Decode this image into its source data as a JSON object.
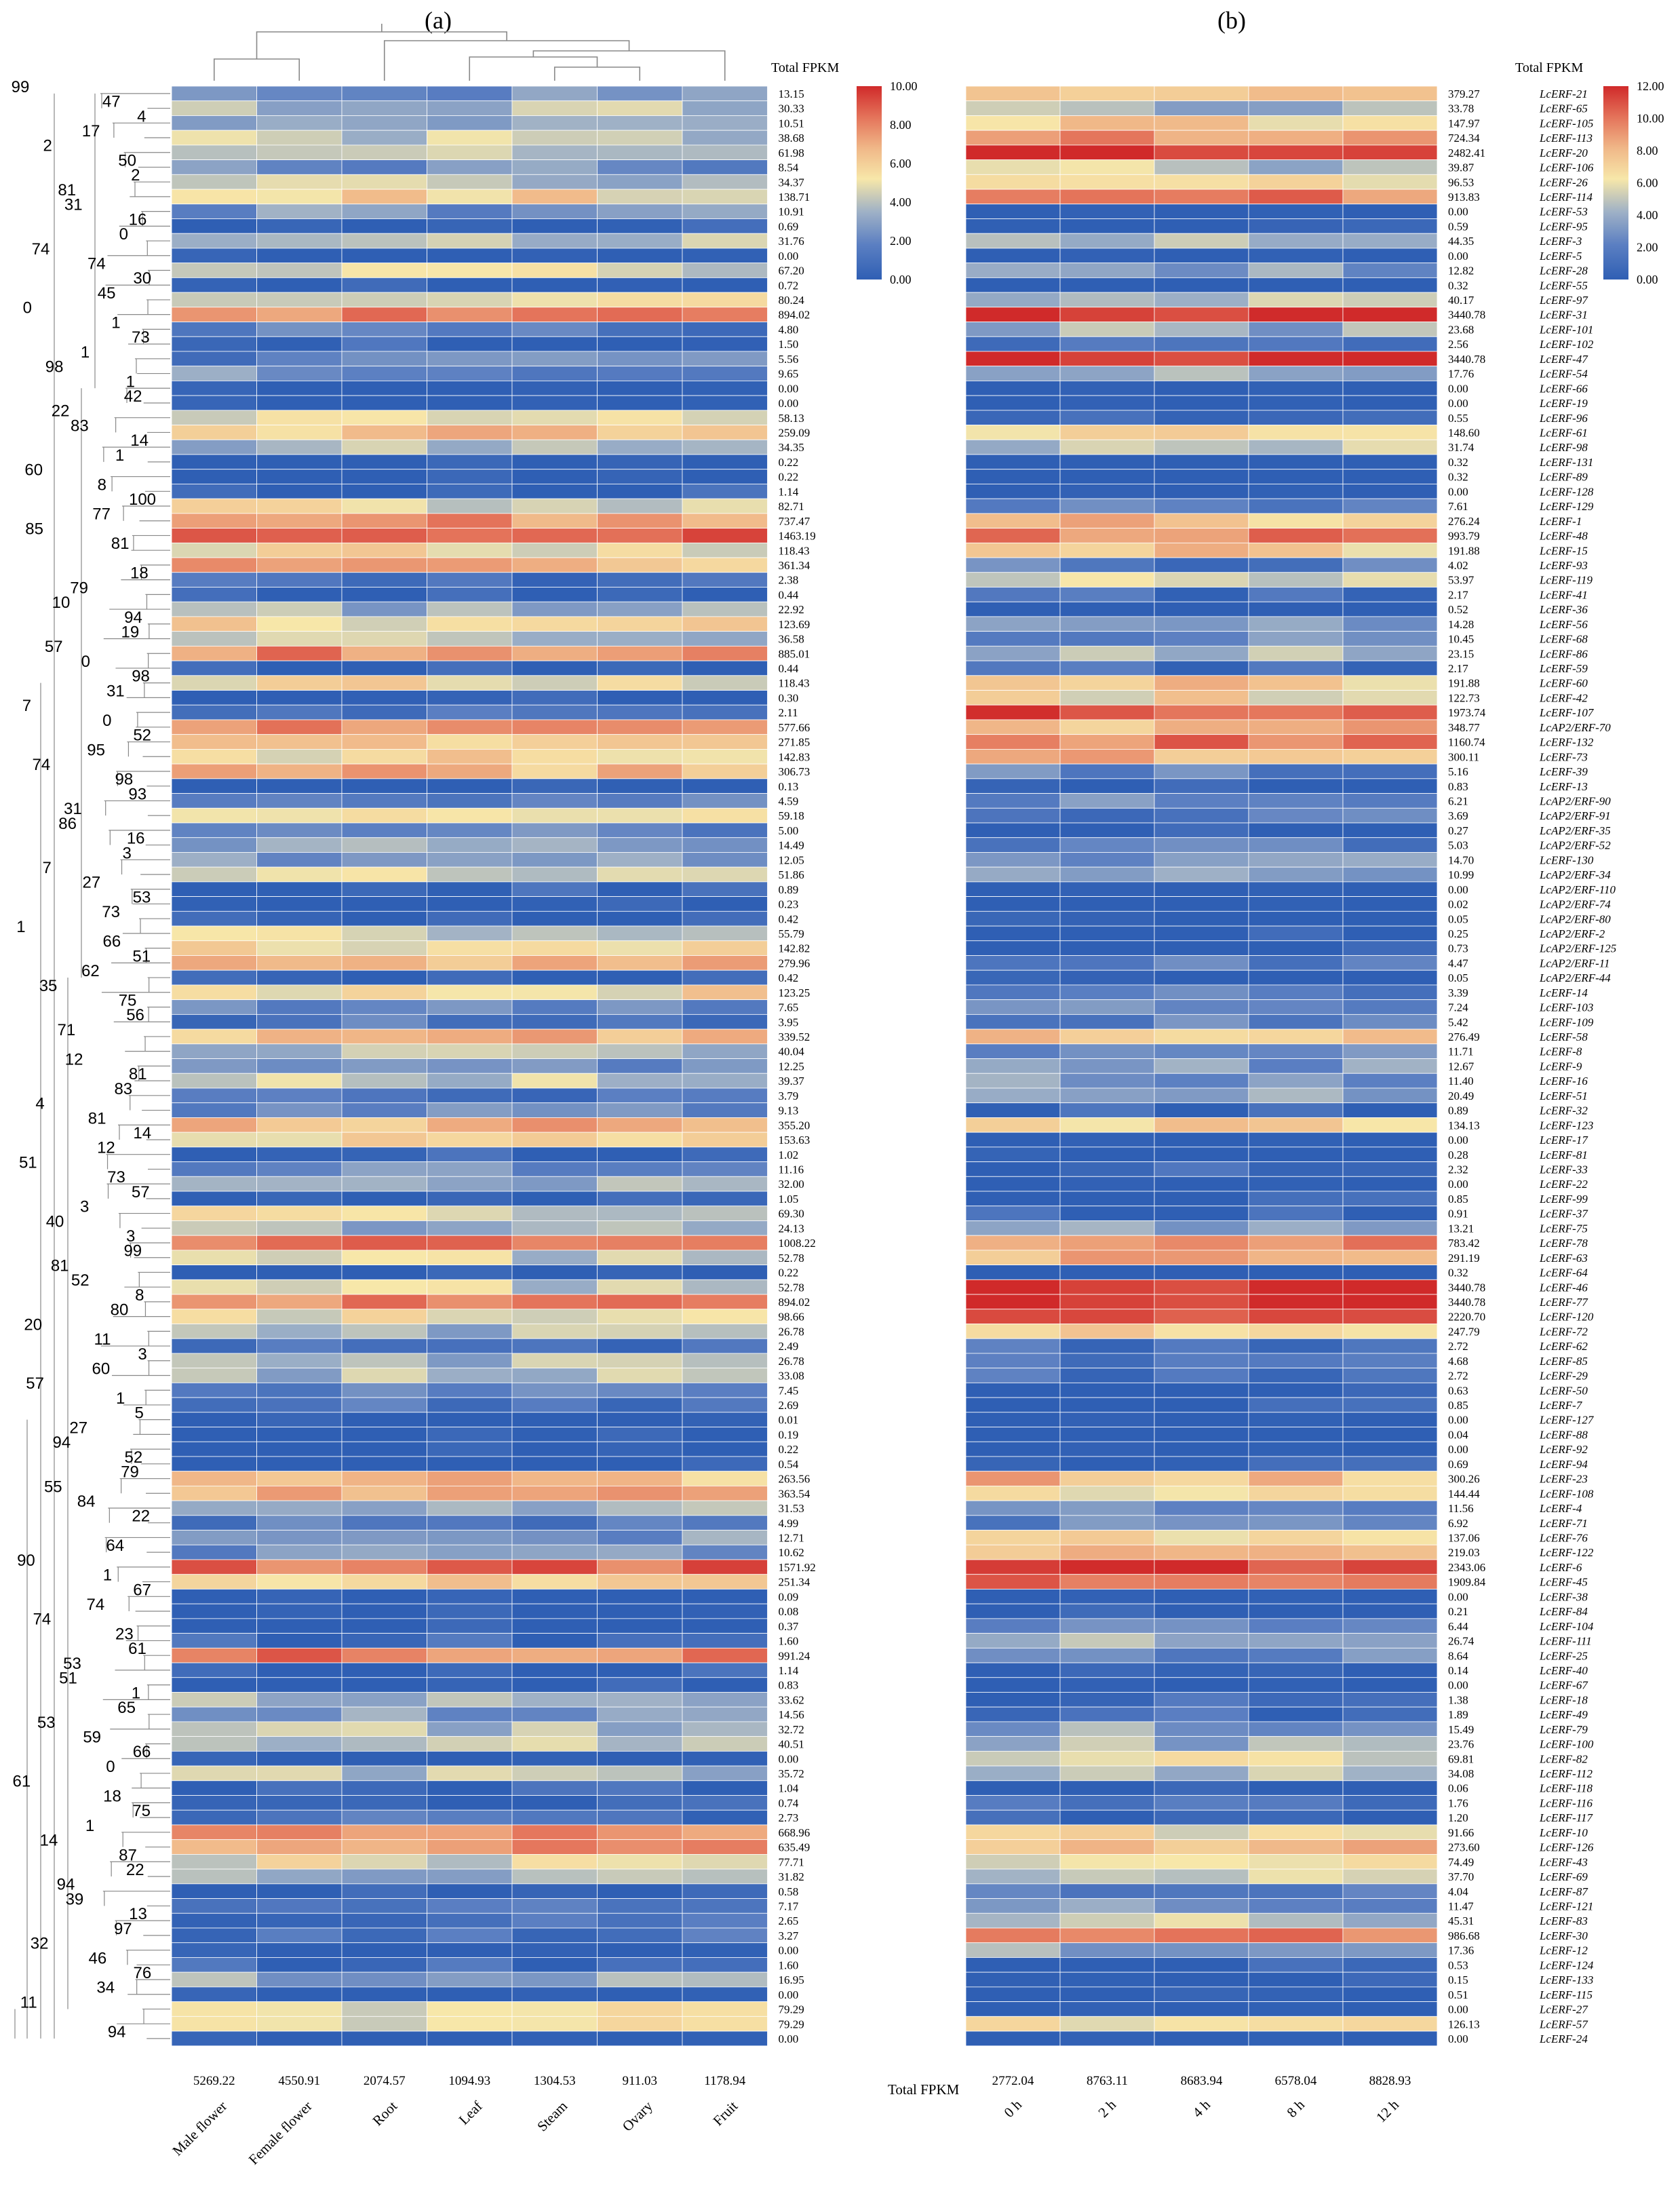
{
  "chart_data": [
    {
      "type": "heatmap",
      "panel_label": "(a)",
      "total_header": "Total FPKM",
      "columns": [
        "Male flower",
        "Female flower",
        "Root",
        "Leaf",
        "Steam",
        "Ovary",
        "Fruit"
      ],
      "column_totals": [
        "5269.22",
        "4550.91",
        "2074.57",
        "1094.93",
        "1304.53",
        "911.03",
        "1178.94"
      ],
      "row_totals": [
        "13.15",
        "30.33",
        "10.51",
        "38.68",
        "61.98",
        "8.54",
        "34.37",
        "138.71",
        "10.91",
        "0.69",
        "31.76",
        "0.00",
        "67.20",
        "0.72",
        "80.24",
        "894.02",
        "4.80",
        "1.50",
        "5.56",
        "9.65",
        "0.00",
        "0.00",
        "58.13",
        "259.09",
        "34.35",
        "0.22",
        "0.22",
        "1.14",
        "82.71",
        "737.47",
        "1463.19",
        "118.43",
        "361.34",
        "2.38",
        "0.44",
        "22.92",
        "123.69",
        "36.58",
        "885.01",
        "0.44",
        "118.43",
        "0.30",
        "2.11",
        "577.66",
        "271.85",
        "142.83",
        "306.73",
        "0.13",
        "4.59",
        "59.18",
        "5.00",
        "14.49",
        "12.05",
        "51.86",
        "0.89",
        "0.23",
        "0.42",
        "55.79",
        "142.82",
        "279.96",
        "0.42",
        "123.25",
        "7.65",
        "3.95",
        "339.52",
        "40.04",
        "12.25",
        "39.37",
        "3.79",
        "9.13",
        "355.20",
        "153.63",
        "1.02",
        "11.16",
        "32.00",
        "1.05",
        "69.30",
        "24.13",
        "1008.22",
        "52.78",
        "0.22",
        "52.78",
        "894.02",
        "98.66",
        "26.78",
        "2.49",
        "26.78",
        "33.08",
        "7.45",
        "2.69",
        "0.01",
        "0.19",
        "0.22",
        "0.54",
        "263.56",
        "363.54",
        "31.53",
        "4.99",
        "12.71",
        "10.62",
        "1571.92",
        "251.34",
        "0.09",
        "0.08",
        "0.37",
        "1.60",
        "991.24",
        "1.14",
        "0.83",
        "33.62",
        "14.56",
        "32.72",
        "40.51",
        "0.00",
        "35.72",
        "1.04",
        "0.74",
        "2.73",
        "668.96",
        "635.49",
        "77.71",
        "31.82",
        "0.58",
        "7.17",
        "2.65",
        "3.27",
        "0.00",
        "1.60",
        "16.95",
        "0.00",
        "79.29",
        "79.29",
        "0.00"
      ],
      "dendrogram_labels": [
        "99",
        "47",
        "4",
        "17",
        "2",
        "50",
        "2",
        "81",
        "31",
        "16",
        "0",
        "74",
        "74",
        "30",
        "45",
        "0",
        "1",
        "73",
        "1",
        "98",
        "1",
        "42",
        "22",
        "83",
        "14",
        "1",
        "60",
        "8",
        "100",
        "77",
        "85",
        "81",
        "18",
        "79",
        "10",
        "94",
        "19",
        "57",
        "0",
        "98",
        "31",
        "7",
        "0",
        "52",
        "95",
        "74",
        "98",
        "93",
        "31",
        "86",
        "16",
        "3",
        "7",
        "27",
        "53",
        "73",
        "1",
        "66",
        "51",
        "62",
        "35",
        "75",
        "56",
        "71",
        "12",
        "81",
        "83",
        "4",
        "81",
        "14",
        "12",
        "51",
        "73",
        "57",
        "3",
        "40",
        "3",
        "99",
        "81",
        "52",
        "8",
        "80",
        "20",
        "11",
        "3",
        "60",
        "57",
        "1",
        "5",
        "27",
        "94",
        "52",
        "79",
        "55",
        "84",
        "22",
        "64",
        "90",
        "1",
        "67",
        "74",
        "74",
        "23",
        "61",
        "53",
        "51",
        "1",
        "65",
        "53",
        "59",
        "66",
        "0",
        "61",
        "18",
        "75",
        "1",
        "14",
        "87",
        "22",
        "94",
        "39",
        "13",
        "97",
        "32",
        "46",
        "76",
        "34",
        "11",
        "94"
      ],
      "legend": {
        "ticks": [
          "10.00",
          "8.00",
          "6.00",
          "4.00",
          "2.00",
          "0.00"
        ],
        "min": 0,
        "max": 10
      },
      "colors": {
        "low": "#2f5fb4",
        "mid": "#f7e7a9",
        "high": "#d02a2a"
      }
    },
    {
      "type": "heatmap",
      "panel_label": "(b)",
      "total_header": "Total FPKM",
      "columns": [
        "0 h",
        "2 h",
        "4 h",
        "8 h",
        "12 h"
      ],
      "total_row_label": "Total FPKM",
      "column_totals": [
        "2772.04",
        "8763.11",
        "8683.94",
        "6578.04",
        "8828.93"
      ],
      "row_totals": [
        "379.27",
        "33.78",
        "147.97",
        "724.34",
        "2482.41",
        "39.87",
        "96.53",
        "913.83",
        "0.00",
        "0.59",
        "44.35",
        "0.00",
        "12.82",
        "0.32",
        "40.17",
        "3440.78",
        "23.68",
        "2.56",
        "3440.78",
        "17.76",
        "0.00",
        "0.00",
        "0.55",
        "148.60",
        "31.74",
        "0.32",
        "0.32",
        "0.00",
        "7.61",
        "276.24",
        "993.79",
        "191.88",
        "4.02",
        "53.97",
        "2.17",
        "0.52",
        "14.28",
        "10.45",
        "23.15",
        "2.17",
        "191.88",
        "122.73",
        "1973.74",
        "348.77",
        "1160.74",
        "300.11",
        "5.16",
        "0.83",
        "6.21",
        "3.69",
        "0.27",
        "5.03",
        "14.70",
        "10.99",
        "0.00",
        "0.02",
        "0.05",
        "0.25",
        "0.73",
        "4.47",
        "0.05",
        "3.39",
        "7.24",
        "5.42",
        "276.49",
        "11.71",
        "12.67",
        "11.40",
        "20.49",
        "0.89",
        "134.13",
        "0.00",
        "0.28",
        "2.32",
        "0.00",
        "0.85",
        "0.91",
        "13.21",
        "783.42",
        "291.19",
        "0.32",
        "3440.78",
        "3440.78",
        "2220.70",
        "247.79",
        "2.72",
        "4.68",
        "2.72",
        "0.63",
        "0.85",
        "0.00",
        "0.04",
        "0.00",
        "0.69",
        "300.26",
        "144.44",
        "11.56",
        "6.92",
        "137.06",
        "219.03",
        "2343.06",
        "1909.84",
        "0.00",
        "0.21",
        "6.44",
        "26.74",
        "8.64",
        "0.14",
        "0.00",
        "1.38",
        "1.89",
        "15.49",
        "23.76",
        "69.81",
        "34.08",
        "0.06",
        "1.76",
        "1.20",
        "91.66",
        "273.60",
        "74.49",
        "37.70",
        "4.04",
        "11.47",
        "45.31",
        "986.68",
        "17.36",
        "0.53",
        "0.15",
        "0.51",
        "0.00",
        "126.13",
        "0.00"
      ],
      "gene_labels": [
        "LcERF-21",
        "LcERF-65",
        "LcERF-105",
        "LcERF-113",
        "LcERF-20",
        "LcERF-106",
        "LcERF-26",
        "LcERF-114",
        "LcERF-53",
        "LcERF-95",
        "LcERF-3",
        "LcERF-5",
        "LcERF-28",
        "LcERF-55",
        "LcERF-97",
        "LcERF-31",
        "LcERF-101",
        "LcERF-102",
        "LcERF-47",
        "LcERF-54",
        "LcERF-66",
        "LcERF-19",
        "LcERF-96",
        "LcERF-61",
        "LcERF-98",
        "LcERF-131",
        "LcERF-89",
        "LcERF-128",
        "LcERF-129",
        "LcERF-1",
        "LcERF-48",
        "LcERF-15",
        "LcERF-93",
        "LcERF-119",
        "LcERF-41",
        "LcERF-36",
        "LcERF-56",
        "LcERF-68",
        "LcERF-86",
        "LcERF-59",
        "LcERF-60",
        "LcERF-42",
        "LcERF-107",
        "LcAP2/ERF-70",
        "LcERF-132",
        "LcERF-73",
        "LcERF-39",
        "LcERF-13",
        "LcAP2/ERF-90",
        "LcAP2/ERF-91",
        "LcAP2/ERF-35",
        "LcAP2/ERF-52",
        "LcERF-130",
        "LcAP2/ERF-34",
        "LcAP2/ERF-110",
        "LcAP2/ERF-74",
        "LcAP2/ERF-80",
        "LcAP2/ERF-2",
        "LcAP2/ERF-125",
        "LcAP2/ERF-11",
        "LcAP2/ERF-44",
        "LcERF-14",
        "LcERF-103",
        "LcERF-109",
        "LcERF-58",
        "LcERF-8",
        "LcERF-9",
        "LcERF-16",
        "LcERF-51",
        "LcERF-32",
        "LcERF-123",
        "LcERF-17",
        "LcERF-81",
        "LcERF-33",
        "LcERF-22",
        "LcERF-99",
        "LcERF-37",
        "LcERF-75",
        "LcERF-78",
        "LcERF-63",
        "LcERF-64",
        "LcERF-46",
        "LcERF-77",
        "LcERF-120",
        "LcERF-72",
        "LcERF-62",
        "LcERF-85",
        "LcERF-29",
        "LcERF-50",
        "LcERF-7",
        "LcERF-127",
        "LcERF-88",
        "LcERF-92",
        "LcERF-94",
        "LcERF-23",
        "LcERF-108",
        "LcERF-4",
        "LcERF-71",
        "LcERF-76",
        "LcERF-122",
        "LcERF-6",
        "LcERF-45",
        "LcERF-38",
        "LcERF-84",
        "LcERF-104",
        "LcERF-111",
        "LcERF-25",
        "LcERF-40",
        "LcERF-67",
        "LcERF-18",
        "LcERF-49",
        "LcERF-79",
        "LcERF-100",
        "LcERF-82",
        "LcERF-112",
        "LcERF-118",
        "LcERF-116",
        "LcERF-117",
        "LcERF-10",
        "LcERF-126",
        "LcERF-43",
        "LcERF-69",
        "LcERF-87",
        "LcERF-121",
        "LcERF-83",
        "LcERF-30",
        "LcERF-12",
        "LcERF-124",
        "LcERF-133",
        "LcERF-115",
        "LcERF-27",
        "LcERF-57",
        "LcERF-24"
      ],
      "legend": {
        "ticks": [
          "12.00",
          "10.00",
          "8.00",
          "6.00",
          "4.00",
          "2.00",
          "0.00"
        ],
        "min": 0,
        "max": 12
      },
      "colors": {
        "low": "#2f5fb4",
        "mid": "#f7e7a9",
        "high": "#d02a2a"
      }
    }
  ]
}
